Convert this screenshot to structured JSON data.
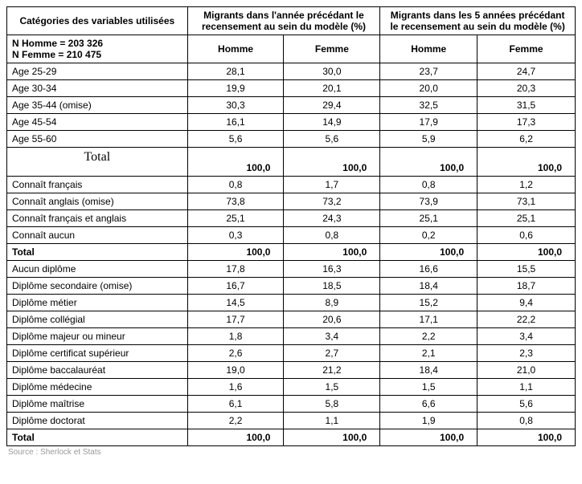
{
  "header": {
    "col0": "Catégories des variables utilisées",
    "group1": "Migrants dans l'année précédant le recensement au sein du modèle (%)",
    "group2": "Migrants dans les 5 années précédant le recensement au sein du modèle (%)",
    "sub_left": "N Homme = 203 326\nN Femme = 210 475",
    "h1": "Homme",
    "f1": "Femme",
    "h2": "Homme",
    "f2": "Femme"
  },
  "sections": [
    {
      "rows": [
        {
          "label": "Age 25-29",
          "v": [
            "28,1",
            "30,0",
            "23,7",
            "24,7"
          ]
        },
        {
          "label": "Age 30-34",
          "v": [
            "19,9",
            "20,1",
            "20,0",
            "20,3"
          ]
        },
        {
          "label": "Age 35-44 (omise)",
          "v": [
            "30,3",
            "29,4",
            "32,5",
            "31,5"
          ]
        },
        {
          "label": "Age 45-54",
          "v": [
            "16,1",
            "14,9",
            "17,9",
            "17,3"
          ]
        },
        {
          "label": "Age 55-60",
          "v": [
            "5,6",
            "5,6",
            "5,9",
            "6,2"
          ]
        }
      ],
      "total": {
        "label": "Total",
        "label_style": "serif",
        "v": [
          "100,0",
          "100,0",
          "100,0",
          "100,0"
        ]
      }
    },
    {
      "rows": [
        {
          "label": "Connaît français",
          "v": [
            "0,8",
            "1,7",
            "0,8",
            "1,2"
          ]
        },
        {
          "label": "Connaît anglais (omise)",
          "v": [
            "73,8",
            "73,2",
            "73,9",
            "73,1"
          ]
        },
        {
          "label": "Connaît français et anglais",
          "v": [
            "25,1",
            "24,3",
            "25,1",
            "25,1"
          ]
        },
        {
          "label": "Connaît aucun",
          "v": [
            "0,3",
            "0,8",
            "0,2",
            "0,6"
          ]
        }
      ],
      "total": {
        "label": "Total",
        "label_style": "bold",
        "v": [
          "100,0",
          "100,0",
          "100,0",
          "100,0"
        ]
      }
    },
    {
      "rows": [
        {
          "label": "Aucun diplôme",
          "v": [
            "17,8",
            "16,3",
            "16,6",
            "15,5"
          ]
        },
        {
          "label": "Diplôme secondaire (omise)",
          "v": [
            "16,7",
            "18,5",
            "18,4",
            "18,7"
          ]
        },
        {
          "label": "Diplôme métier",
          "v": [
            "14,5",
            "8,9",
            "15,2",
            "9,4"
          ]
        },
        {
          "label": "Diplôme collégial",
          "v": [
            "17,7",
            "20,6",
            "17,1",
            "22,2"
          ]
        },
        {
          "label": "Diplôme majeur ou mineur",
          "v": [
            "1,8",
            "3,4",
            "2,2",
            "3,4"
          ]
        },
        {
          "label": "Diplôme certificat supérieur",
          "v": [
            "2,6",
            "2,7",
            "2,1",
            "2,3"
          ]
        },
        {
          "label": "Diplôme baccalauréat",
          "v": [
            "19,0",
            "21,2",
            "18,4",
            "21,0"
          ]
        },
        {
          "label": "Diplôme médecine",
          "v": [
            "1,6",
            "1,5",
            "1,5",
            "1,1"
          ]
        },
        {
          "label": "Diplôme maîtrise",
          "v": [
            "6,1",
            "5,8",
            "6,6",
            "5,6"
          ]
        },
        {
          "label": "Diplôme doctorat",
          "v": [
            "2,2",
            "1,1",
            "1,9",
            "0,8"
          ]
        }
      ],
      "total": {
        "label": "Total",
        "label_style": "bold",
        "v": [
          "100,0",
          "100,0",
          "100,0",
          "100,0"
        ]
      }
    }
  ],
  "source": "Source : Sherlock et Stats"
}
